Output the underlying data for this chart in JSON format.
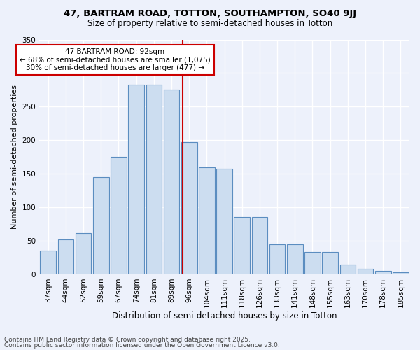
{
  "title": "47, BARTRAM ROAD, TOTTON, SOUTHAMPTON, SO40 9JJ",
  "subtitle": "Size of property relative to semi-detached houses in Totton",
  "xlabel": "Distribution of semi-detached houses by size in Totton",
  "ylabel": "Number of semi-detached properties",
  "categories": [
    "37sqm",
    "44sqm",
    "52sqm",
    "59sqm",
    "67sqm",
    "74sqm",
    "81sqm",
    "89sqm",
    "96sqm",
    "104sqm",
    "111sqm",
    "118sqm",
    "126sqm",
    "133sqm",
    "141sqm",
    "148sqm",
    "155sqm",
    "163sqm",
    "170sqm",
    "178sqm",
    "185sqm"
  ],
  "values": [
    35,
    52,
    62,
    145,
    175,
    283,
    283,
    275,
    197,
    160,
    157,
    85,
    85,
    45,
    45,
    33,
    33,
    15,
    8,
    5,
    3
  ],
  "bar_color": "#ccddf0",
  "bar_edge_color": "#5b8dc0",
  "annotation_title": "47 BARTRAM ROAD: 92sqm",
  "annotation_line1": "← 68% of semi-detached houses are smaller (1,075)",
  "annotation_line2": "30% of semi-detached houses are larger (477) →",
  "annotation_box_color": "#ffffff",
  "annotation_box_edge_color": "#cc0000",
  "vline_color": "#cc0000",
  "vline_x": 7.65,
  "ylim": [
    0,
    350
  ],
  "yticks": [
    0,
    50,
    100,
    150,
    200,
    250,
    300,
    350
  ],
  "footer1": "Contains HM Land Registry data © Crown copyright and database right 2025.",
  "footer2": "Contains public sector information licensed under the Open Government Licence v3.0.",
  "background_color": "#edf1fb",
  "grid_color": "#ffffff",
  "title_fontsize": 9.5,
  "subtitle_fontsize": 8.5,
  "tick_fontsize": 7.5,
  "ylabel_fontsize": 8,
  "xlabel_fontsize": 8.5,
  "footer_fontsize": 6.5
}
